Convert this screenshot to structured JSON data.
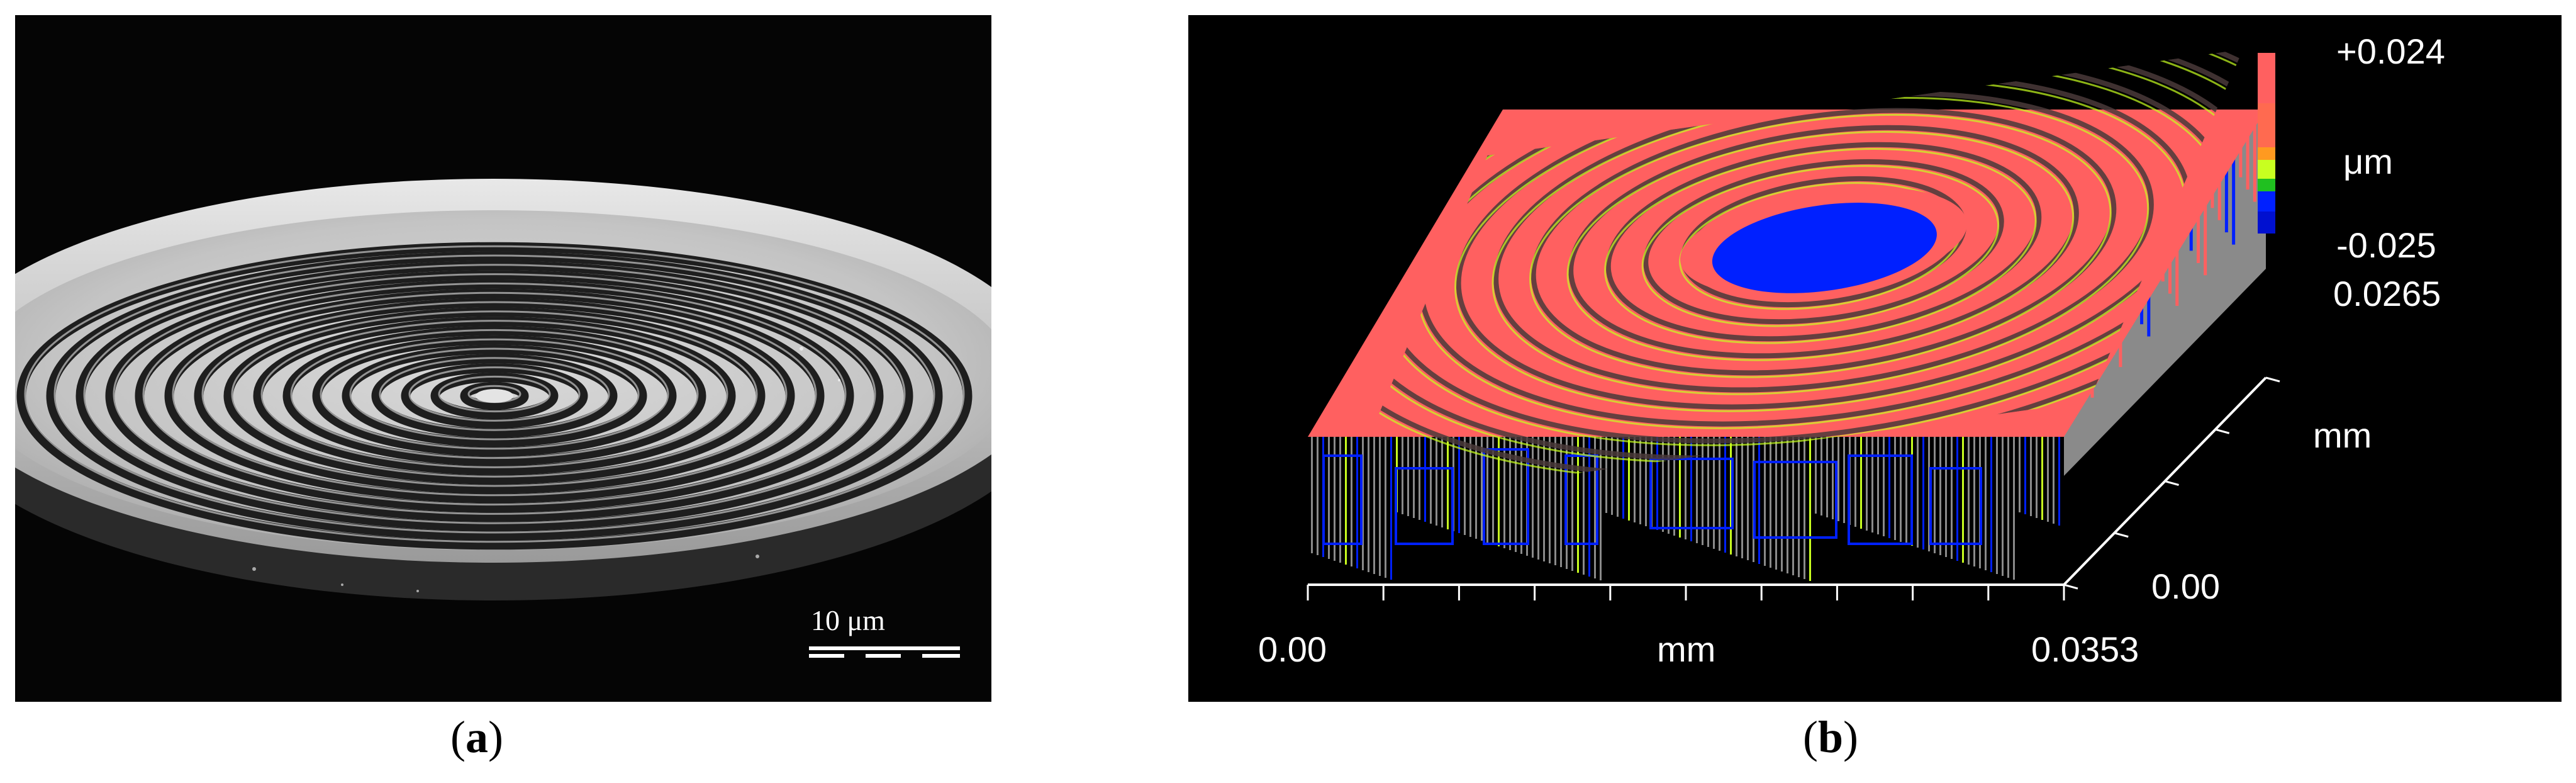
{
  "panel_a": {
    "caption": "a",
    "scalebar_label": "10 μm"
  },
  "panel_b": {
    "caption": "b",
    "legend_max": "+0.024",
    "legend_unit": "μm",
    "legend_min": "-0.025",
    "x_axis_start": "0.00",
    "x_axis_unit": "mm",
    "x_axis_end": "0.0353",
    "y_axis_start": "0.00",
    "y_axis_unit": "mm",
    "y_axis_end": "0.0265",
    "colors": {
      "high": "#ff6060",
      "mid": "#c8ff20",
      "low": "#0020ff",
      "side": "#8a8a8a"
    }
  }
}
